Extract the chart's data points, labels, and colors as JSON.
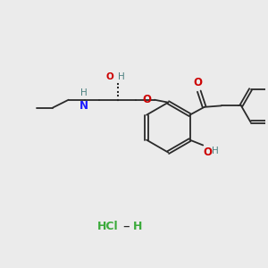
{
  "background_color": "#ebebeb",
  "bond_color": "#2a2a2a",
  "o_color": "#cc0000",
  "n_color": "#1a1aff",
  "h_color": "#4a8080",
  "cl_color": "#3aaa3a",
  "figsize": [
    3.0,
    3.0
  ],
  "dpi": 100,
  "xlim": [
    0,
    10
  ],
  "ylim": [
    0,
    10
  ]
}
